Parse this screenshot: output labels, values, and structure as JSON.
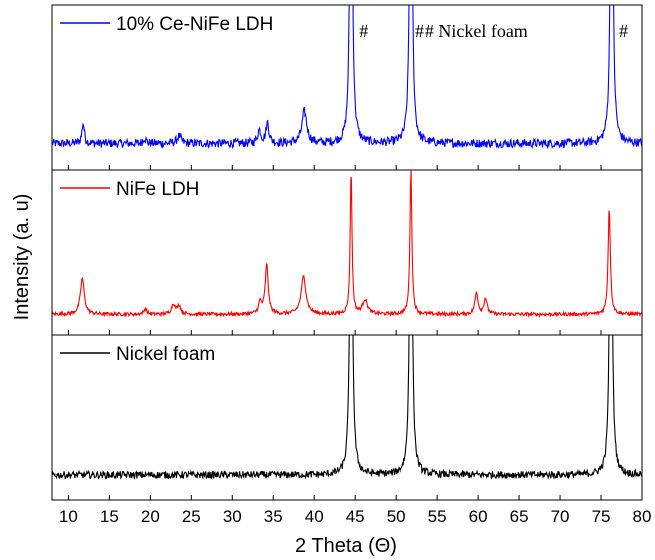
{
  "chart_data": {
    "type": "line",
    "xlabel": "2 Theta (Θ)",
    "ylabel": "Intensity (a. u)",
    "xlim": [
      8,
      80
    ],
    "x_ticks": [
      10,
      15,
      20,
      25,
      30,
      35,
      40,
      45,
      50,
      55,
      60,
      65,
      70,
      75,
      80
    ],
    "grid": false,
    "stacked_panels": true,
    "panels": [
      {
        "name": "10% Ce-NiFe LDH",
        "legend_label": "10% Ce-NiFe LDH",
        "color": "#0000ff",
        "baseline": 0.1,
        "noise": 0.03,
        "peaks": [
          {
            "x": 11.8,
            "height": 0.14,
            "width": 0.18
          },
          {
            "x": 19.3,
            "height": 0.04,
            "width": 0.2
          },
          {
            "x": 23.5,
            "height": 0.05,
            "width": 0.3
          },
          {
            "x": 33.3,
            "height": 0.09,
            "width": 0.25
          },
          {
            "x": 34.3,
            "height": 0.14,
            "width": 0.22
          },
          {
            "x": 38.8,
            "height": 0.22,
            "width": 0.35
          },
          {
            "x": 44.5,
            "height": 3.0,
            "width": 0.16
          },
          {
            "x": 51.8,
            "height": 3.0,
            "width": 0.16
          },
          {
            "x": 76.3,
            "height": 3.0,
            "width": 0.16
          }
        ],
        "annotations": [
          {
            "text": "#",
            "x": 45.5
          },
          {
            "text": "#",
            "x": 52.3
          },
          {
            "text": "# Nickel foam",
            "x": 53.5
          },
          {
            "text": "#",
            "x": 77.2
          }
        ]
      },
      {
        "name": "NiFe LDH",
        "legend_label": "NiFe LDH",
        "color": "#ff0000",
        "baseline": 0.06,
        "noise": 0.012,
        "peaks": [
          {
            "x": 11.7,
            "height": 0.25,
            "width": 0.28
          },
          {
            "x": 19.4,
            "height": 0.04,
            "width": 0.2
          },
          {
            "x": 22.8,
            "height": 0.07,
            "width": 0.25
          },
          {
            "x": 23.5,
            "height": 0.06,
            "width": 0.25
          },
          {
            "x": 33.4,
            "height": 0.08,
            "width": 0.22
          },
          {
            "x": 34.2,
            "height": 0.34,
            "width": 0.22
          },
          {
            "x": 38.7,
            "height": 0.26,
            "width": 0.35
          },
          {
            "x": 44.5,
            "height": 1.0,
            "width": 0.13
          },
          {
            "x": 46.2,
            "height": 0.1,
            "width": 0.35
          },
          {
            "x": 51.8,
            "height": 1.0,
            "width": 0.14
          },
          {
            "x": 59.8,
            "height": 0.15,
            "width": 0.22
          },
          {
            "x": 60.9,
            "height": 0.11,
            "width": 0.22
          },
          {
            "x": 76.0,
            "height": 0.74,
            "width": 0.16
          }
        ],
        "annotations": []
      },
      {
        "name": "Nickel foam",
        "legend_label": "Nickel foam",
        "color": "#000000",
        "baseline": 0.09,
        "noise": 0.025,
        "peaks": [
          {
            "x": 44.5,
            "height": 3.0,
            "width": 0.16
          },
          {
            "x": 51.8,
            "height": 3.0,
            "width": 0.16
          },
          {
            "x": 76.2,
            "height": 3.0,
            "width": 0.16
          }
        ],
        "annotations": []
      }
    ]
  }
}
